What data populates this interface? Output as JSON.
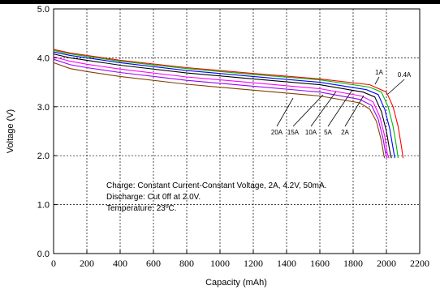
{
  "chart_data": {
    "type": "line",
    "xlabel": "Capacity (mAh)",
    "ylabel": "Voltage (V)",
    "xlim": [
      0,
      2200
    ],
    "ylim": [
      0,
      5
    ],
    "x_ticks": [
      0,
      200,
      400,
      600,
      800,
      1000,
      1200,
      1400,
      1600,
      1800,
      2000,
      2200
    ],
    "y_ticks": [
      "0.0",
      "1.0",
      "2.0",
      "3.0",
      "4.0",
      "5.0"
    ],
    "grid": true,
    "series": [
      {
        "name": "0.4A",
        "color": "#ff0000",
        "x": [
          0,
          100,
          200,
          400,
          800,
          1200,
          1600,
          1900,
          2000,
          2040,
          2070,
          2090,
          2100
        ],
        "y": [
          4.17,
          4.1,
          4.05,
          3.95,
          3.8,
          3.68,
          3.57,
          3.45,
          3.3,
          3.0,
          2.6,
          2.2,
          1.95
        ]
      },
      {
        "name": "1A",
        "color": "#00bb00",
        "x": [
          0,
          100,
          200,
          400,
          800,
          1200,
          1600,
          1900,
          1970,
          2010,
          2040,
          2060,
          2070
        ],
        "y": [
          4.15,
          4.08,
          4.03,
          3.93,
          3.78,
          3.66,
          3.55,
          3.4,
          3.3,
          3.0,
          2.6,
          2.2,
          1.95
        ]
      },
      {
        "name": "2A",
        "color": "#0000ff",
        "x": [
          0,
          100,
          200,
          400,
          800,
          1200,
          1600,
          1880,
          1950,
          1990,
          2020,
          2040,
          2050
        ],
        "y": [
          4.12,
          4.05,
          4.0,
          3.9,
          3.74,
          3.62,
          3.5,
          3.35,
          3.25,
          2.95,
          2.55,
          2.15,
          1.95
        ]
      },
      {
        "name": "5A",
        "color": "#000000",
        "x": [
          0,
          100,
          200,
          400,
          800,
          1200,
          1600,
          1860,
          1930,
          1970,
          2000,
          2020,
          2030
        ],
        "y": [
          4.08,
          4.0,
          3.95,
          3.85,
          3.69,
          3.57,
          3.45,
          3.3,
          3.2,
          2.9,
          2.5,
          2.1,
          1.95
        ]
      },
      {
        "name": "10A",
        "color": "#ff00ff",
        "x": [
          0,
          100,
          200,
          400,
          800,
          1200,
          1600,
          1850,
          1920,
          1960,
          1990,
          2005,
          2015
        ],
        "y": [
          4.02,
          3.93,
          3.87,
          3.77,
          3.61,
          3.49,
          3.37,
          3.22,
          3.1,
          2.8,
          2.4,
          2.05,
          1.95
        ]
      },
      {
        "name": "15A",
        "color": "#9900ff",
        "x": [
          0,
          100,
          200,
          400,
          800,
          1200,
          1600,
          1840,
          1910,
          1950,
          1980,
          1995,
          2005
        ],
        "y": [
          3.97,
          3.86,
          3.8,
          3.7,
          3.54,
          3.42,
          3.3,
          3.15,
          3.03,
          2.75,
          2.35,
          2.05,
          1.95
        ]
      },
      {
        "name": "20A",
        "color": "#804000",
        "x": [
          0,
          100,
          200,
          400,
          800,
          1200,
          1600,
          1840,
          1900,
          1940,
          1970,
          1985,
          1990
        ],
        "y": [
          3.9,
          3.78,
          3.72,
          3.62,
          3.46,
          3.34,
          3.22,
          3.08,
          2.95,
          2.7,
          2.3,
          2.0,
          1.95
        ]
      }
    ],
    "annotations": [
      "Charge: Constant Current-Constant Voltage, 2A, 4.2V, 50mA.",
      "Discharge: Cut 0ff at 2.0V.",
      "Temperature: 23ºC."
    ]
  }
}
